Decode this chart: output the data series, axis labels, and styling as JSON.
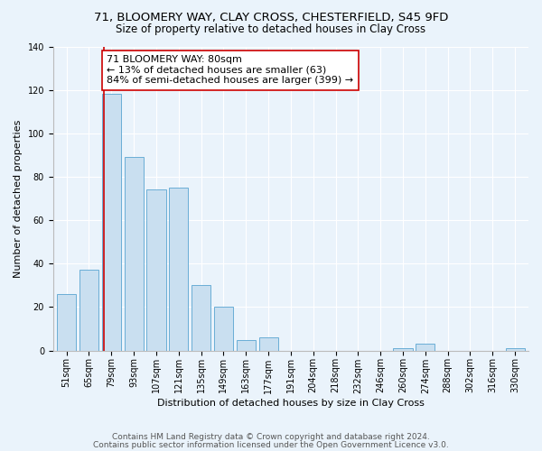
{
  "title": "71, BLOOMERY WAY, CLAY CROSS, CHESTERFIELD, S45 9FD",
  "subtitle": "Size of property relative to detached houses in Clay Cross",
  "xlabel": "Distribution of detached houses by size in Clay Cross",
  "ylabel": "Number of detached properties",
  "bar_labels": [
    "51sqm",
    "65sqm",
    "79sqm",
    "93sqm",
    "107sqm",
    "121sqm",
    "135sqm",
    "149sqm",
    "163sqm",
    "177sqm",
    "191sqm",
    "204sqm",
    "218sqm",
    "232sqm",
    "246sqm",
    "260sqm",
    "274sqm",
    "288sqm",
    "302sqm",
    "316sqm",
    "330sqm"
  ],
  "bar_values": [
    26,
    37,
    118,
    89,
    74,
    75,
    30,
    20,
    5,
    6,
    0,
    0,
    0,
    0,
    0,
    1,
    3,
    0,
    0,
    0,
    1
  ],
  "bar_color": "#c9dff0",
  "bar_edge_color": "#6aaed6",
  "property_line_color": "#cc0000",
  "annotation_line1": "71 BLOOMERY WAY: 80sqm",
  "annotation_line2": "← 13% of detached houses are smaller (63)",
  "annotation_line3": "84% of semi-detached houses are larger (399) →",
  "annotation_box_color": "#ffffff",
  "annotation_box_edge": "#cc0000",
  "ylim": [
    0,
    140
  ],
  "yticks": [
    0,
    20,
    40,
    60,
    80,
    100,
    120,
    140
  ],
  "footer_line1": "Contains HM Land Registry data © Crown copyright and database right 2024.",
  "footer_line2": "Contains public sector information licensed under the Open Government Licence v3.0.",
  "background_color": "#eaf3fb",
  "plot_bg_color": "#eaf3fb",
  "grid_color": "#ffffff",
  "title_fontsize": 9.5,
  "subtitle_fontsize": 8.5,
  "axis_label_fontsize": 8,
  "tick_fontsize": 7,
  "annotation_fontsize": 8,
  "footer_fontsize": 6.5
}
